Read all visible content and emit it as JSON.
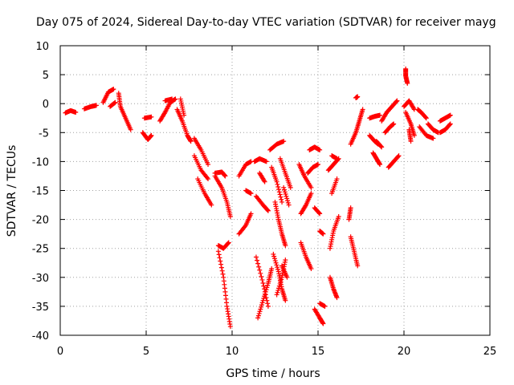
{
  "chart_data": {
    "type": "scatter",
    "title": "Day 075 of 2024, Sidereal Day-to-day VTEC variation (SDTVAR) for receiver mayg",
    "xlabel": "GPS time / hours",
    "ylabel": "SDTVAR / TECUs",
    "xlim": [
      0,
      25
    ],
    "ylim": [
      -40,
      10
    ],
    "xticks": [
      0,
      5,
      10,
      15,
      20,
      25
    ],
    "yticks": [
      10,
      5,
      0,
      -5,
      -10,
      -15,
      -20,
      -25,
      -30,
      -35,
      -40
    ],
    "grid": true,
    "marker": "plus",
    "marker_color": "#ff0000",
    "series": [
      {
        "name": "SDTVAR",
        "tracks": [
          [
            [
              0.3,
              -1.6
            ],
            [
              0.6,
              -1.2
            ],
            [
              0.9,
              -1.5
            ]
          ],
          [
            [
              1.4,
              -0.9
            ],
            [
              1.8,
              -0.5
            ],
            [
              2.1,
              -0.3
            ]
          ],
          [
            [
              2.5,
              0.2
            ],
            [
              2.8,
              2.0
            ],
            [
              3.1,
              2.5
            ]
          ],
          [
            [
              2.9,
              -0.5
            ],
            [
              3.2,
              0.2
            ]
          ],
          [
            [
              3.4,
              1.8
            ],
            [
              3.5,
              -0.5
            ],
            [
              3.8,
              -2.5
            ],
            [
              4.1,
              -4.5
            ]
          ],
          [
            [
              4.9,
              -2.5
            ],
            [
              5.3,
              -2.3
            ]
          ],
          [
            [
              4.8,
              -5.0
            ],
            [
              5.1,
              -6.2
            ],
            [
              5.3,
              -5.5
            ]
          ],
          [
            [
              5.8,
              -3.0
            ],
            [
              6.1,
              -1.5
            ],
            [
              6.4,
              0.2
            ],
            [
              6.7,
              0.8
            ]
          ],
          [
            [
              6.1,
              0.5
            ],
            [
              6.5,
              0.8
            ]
          ],
          [
            [
              6.8,
              -1.0
            ],
            [
              7.1,
              -3.0
            ],
            [
              7.4,
              -5.5
            ],
            [
              7.6,
              -6.5
            ]
          ],
          [
            [
              7.0,
              0.8
            ],
            [
              7.2,
              -2.0
            ]
          ],
          [
            [
              7.8,
              -6.0
            ],
            [
              8.2,
              -8.0
            ],
            [
              8.6,
              -10.5
            ]
          ],
          [
            [
              7.8,
              -9.0
            ],
            [
              8.2,
              -11.5
            ],
            [
              8.6,
              -13.0
            ]
          ],
          [
            [
              8.0,
              -13.0
            ],
            [
              8.4,
              -15.5
            ],
            [
              8.8,
              -17.5
            ]
          ],
          [
            [
              9.0,
              -12.0
            ],
            [
              9.4,
              -11.8
            ],
            [
              9.6,
              -12.5
            ]
          ],
          [
            [
              9.0,
              -12.5
            ],
            [
              9.4,
              -14.5
            ],
            [
              9.7,
              -17.0
            ],
            [
              9.9,
              -19.5
            ]
          ],
          [
            [
              9.2,
              -24.5
            ],
            [
              9.5,
              -25.0
            ],
            [
              9.8,
              -24.0
            ]
          ],
          [
            [
              9.2,
              -25.5
            ],
            [
              9.5,
              -30.0
            ],
            [
              9.7,
              -35.0
            ],
            [
              9.9,
              -38.5
            ]
          ],
          [
            [
              10.4,
              -12.5
            ],
            [
              10.8,
              -10.5
            ],
            [
              11.1,
              -10.0
            ]
          ],
          [
            [
              10.4,
              -22.5
            ],
            [
              10.8,
              -21.0
            ],
            [
              11.1,
              -19.0
            ]
          ],
          [
            [
              10.8,
              -15.0
            ],
            [
              11.1,
              -15.5
            ]
          ],
          [
            [
              11.3,
              -10.0
            ],
            [
              11.6,
              -9.5
            ],
            [
              12.0,
              -10.0
            ]
          ],
          [
            [
              11.4,
              -16.0
            ],
            [
              11.8,
              -17.5
            ],
            [
              12.1,
              -18.5
            ]
          ],
          [
            [
              11.4,
              -26.5
            ],
            [
              11.8,
              -31.0
            ],
            [
              12.1,
              -35.0
            ]
          ],
          [
            [
              11.5,
              -37.0
            ],
            [
              11.8,
              -34.0
            ],
            [
              12.1,
              -31.0
            ],
            [
              12.3,
              -28.5
            ]
          ],
          [
            [
              11.6,
              -12.0
            ],
            [
              11.9,
              -13.5
            ]
          ],
          [
            [
              12.3,
              -11.0
            ],
            [
              12.6,
              -13.5
            ],
            [
              12.9,
              -17.0
            ]
          ],
          [
            [
              12.2,
              -8.0
            ],
            [
              12.6,
              -7.0
            ],
            [
              13.0,
              -6.5
            ]
          ],
          [
            [
              12.5,
              -17.0
            ],
            [
              12.7,
              -20.0
            ],
            [
              12.9,
              -22.5
            ],
            [
              13.1,
              -24.5
            ]
          ],
          [
            [
              12.4,
              -26.0
            ],
            [
              12.7,
              -29.0
            ],
            [
              12.9,
              -32.0
            ],
            [
              13.1,
              -34.0
            ]
          ],
          [
            [
              12.6,
              -33.0
            ],
            [
              12.9,
              -30.0
            ],
            [
              13.1,
              -27.0
            ]
          ],
          [
            [
              12.8,
              -9.5
            ],
            [
              13.1,
              -12.0
            ],
            [
              13.4,
              -14.5
            ]
          ],
          [
            [
              13.0,
              -14.5
            ],
            [
              13.3,
              -17.5
            ]
          ],
          [
            [
              12.9,
              -28.0
            ],
            [
              13.2,
              -30.0
            ]
          ],
          [
            [
              13.9,
              -10.5
            ],
            [
              14.2,
              -12.5
            ],
            [
              14.6,
              -14.5
            ]
          ],
          [
            [
              14.0,
              -24.0
            ],
            [
              14.3,
              -26.5
            ],
            [
              14.6,
              -28.5
            ]
          ],
          [
            [
              14.0,
              -19.0
            ],
            [
              14.3,
              -17.5
            ],
            [
              14.6,
              -15.5
            ]
          ],
          [
            [
              14.5,
              -8.0
            ],
            [
              14.8,
              -7.5
            ],
            [
              15.1,
              -8.0
            ]
          ],
          [
            [
              14.4,
              -12.0
            ],
            [
              14.7,
              -11.0
            ],
            [
              15.0,
              -10.5
            ]
          ],
          [
            [
              14.8,
              -18.0
            ],
            [
              15.1,
              -19.0
            ]
          ],
          [
            [
              14.8,
              -35.5
            ],
            [
              15.1,
              -37.0
            ],
            [
              15.3,
              -38.0
            ]
          ],
          [
            [
              15.1,
              -34.5
            ],
            [
              15.4,
              -35.0
            ]
          ],
          [
            [
              15.1,
              -22.0
            ],
            [
              15.3,
              -22.5
            ]
          ],
          [
            [
              15.8,
              -9.0
            ],
            [
              16.1,
              -9.5
            ]
          ],
          [
            [
              15.6,
              -11.5
            ],
            [
              15.9,
              -10.5
            ],
            [
              16.2,
              -9.5
            ]
          ],
          [
            [
              15.8,
              -15.5
            ],
            [
              16.1,
              -13.0
            ]
          ],
          [
            [
              15.7,
              -25.0
            ],
            [
              15.9,
              -22.0
            ],
            [
              16.2,
              -19.5
            ]
          ],
          [
            [
              15.7,
              -30.0
            ],
            [
              15.9,
              -32.0
            ],
            [
              16.1,
              -33.5
            ]
          ],
          [
            [
              16.8,
              -20.0
            ],
            [
              16.9,
              -18.0
            ]
          ],
          [
            [
              16.9,
              -23.0
            ],
            [
              17.1,
              -25.5
            ],
            [
              17.3,
              -28.0
            ]
          ],
          [
            [
              16.9,
              -7.0
            ],
            [
              17.2,
              -5.0
            ],
            [
              17.4,
              -3.0
            ],
            [
              17.6,
              -1.0
            ]
          ],
          [
            [
              17.2,
              1.0
            ],
            [
              17.3,
              1.2
            ]
          ],
          [
            [
              18.0,
              -2.5
            ],
            [
              18.3,
              -2.2
            ],
            [
              18.6,
              -2.0
            ]
          ],
          [
            [
              18.0,
              -5.5
            ],
            [
              18.3,
              -6.5
            ],
            [
              18.5,
              -7.0
            ]
          ],
          [
            [
              18.2,
              -8.5
            ],
            [
              18.4,
              -9.5
            ],
            [
              18.6,
              -10.5
            ]
          ],
          [
            [
              18.4,
              -6.5
            ],
            [
              18.7,
              -7.5
            ]
          ],
          [
            [
              18.7,
              -3.0
            ],
            [
              19.0,
              -1.5
            ],
            [
              19.3,
              -0.5
            ],
            [
              19.6,
              0.5
            ]
          ],
          [
            [
              18.9,
              -5.0
            ],
            [
              19.2,
              -4.0
            ],
            [
              19.4,
              -3.5
            ]
          ],
          [
            [
              19.1,
              -11.0
            ],
            [
              19.4,
              -10.0
            ],
            [
              19.7,
              -9.0
            ]
          ],
          [
            [
              20.0,
              -0.5
            ],
            [
              20.3,
              0.5
            ],
            [
              20.6,
              -1.0
            ]
          ],
          [
            [
              20.1,
              -1.5
            ],
            [
              20.4,
              -3.5
            ],
            [
              20.6,
              -5.5
            ]
          ],
          [
            [
              20.3,
              -4.5
            ],
            [
              20.4,
              -6.5
            ]
          ],
          [
            [
              20.1,
              6.0
            ],
            [
              20.1,
              4.8
            ],
            [
              20.2,
              3.5
            ]
          ],
          [
            [
              20.8,
              -1.0
            ],
            [
              21.0,
              -1.5
            ],
            [
              21.3,
              -2.5
            ]
          ],
          [
            [
              20.9,
              -4.0
            ],
            [
              21.3,
              -5.5
            ],
            [
              21.7,
              -6.0
            ]
          ],
          [
            [
              21.4,
              -3.5
            ],
            [
              21.7,
              -4.5
            ],
            [
              22.0,
              -5.0
            ]
          ],
          [
            [
              22.1,
              -3.0
            ],
            [
              22.4,
              -2.5
            ],
            [
              22.7,
              -2.0
            ]
          ],
          [
            [
              22.1,
              -5.0
            ],
            [
              22.4,
              -4.5
            ],
            [
              22.7,
              -3.5
            ]
          ]
        ]
      }
    ]
  }
}
